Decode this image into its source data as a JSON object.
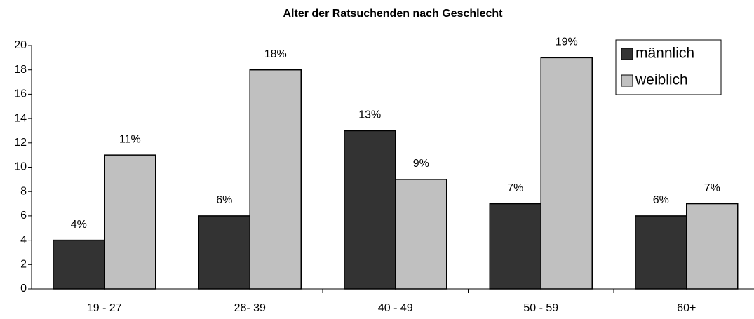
{
  "chart_data": {
    "type": "bar",
    "title": "Alter der Ratsuchenden nach Geschlecht",
    "categories": [
      "19 - 27",
      "28- 39",
      "40 - 49",
      "50 - 59",
      "60+"
    ],
    "series": [
      {
        "name": "männlich",
        "color": "#333333",
        "values": [
          4,
          6,
          13,
          7,
          6
        ],
        "value_labels": [
          "4%",
          "6%",
          "13%",
          "7%",
          "6%"
        ]
      },
      {
        "name": "weiblich",
        "color": "#c0c0c0",
        "values": [
          11,
          18,
          9,
          19,
          7
        ],
        "value_labels": [
          "11%",
          "18%",
          "9%",
          "19%",
          "7%"
        ]
      }
    ],
    "ylim": [
      0,
      20
    ],
    "yticks": [
      0,
      2,
      4,
      6,
      8,
      10,
      12,
      14,
      16,
      18,
      20
    ],
    "legend": "upper right"
  }
}
